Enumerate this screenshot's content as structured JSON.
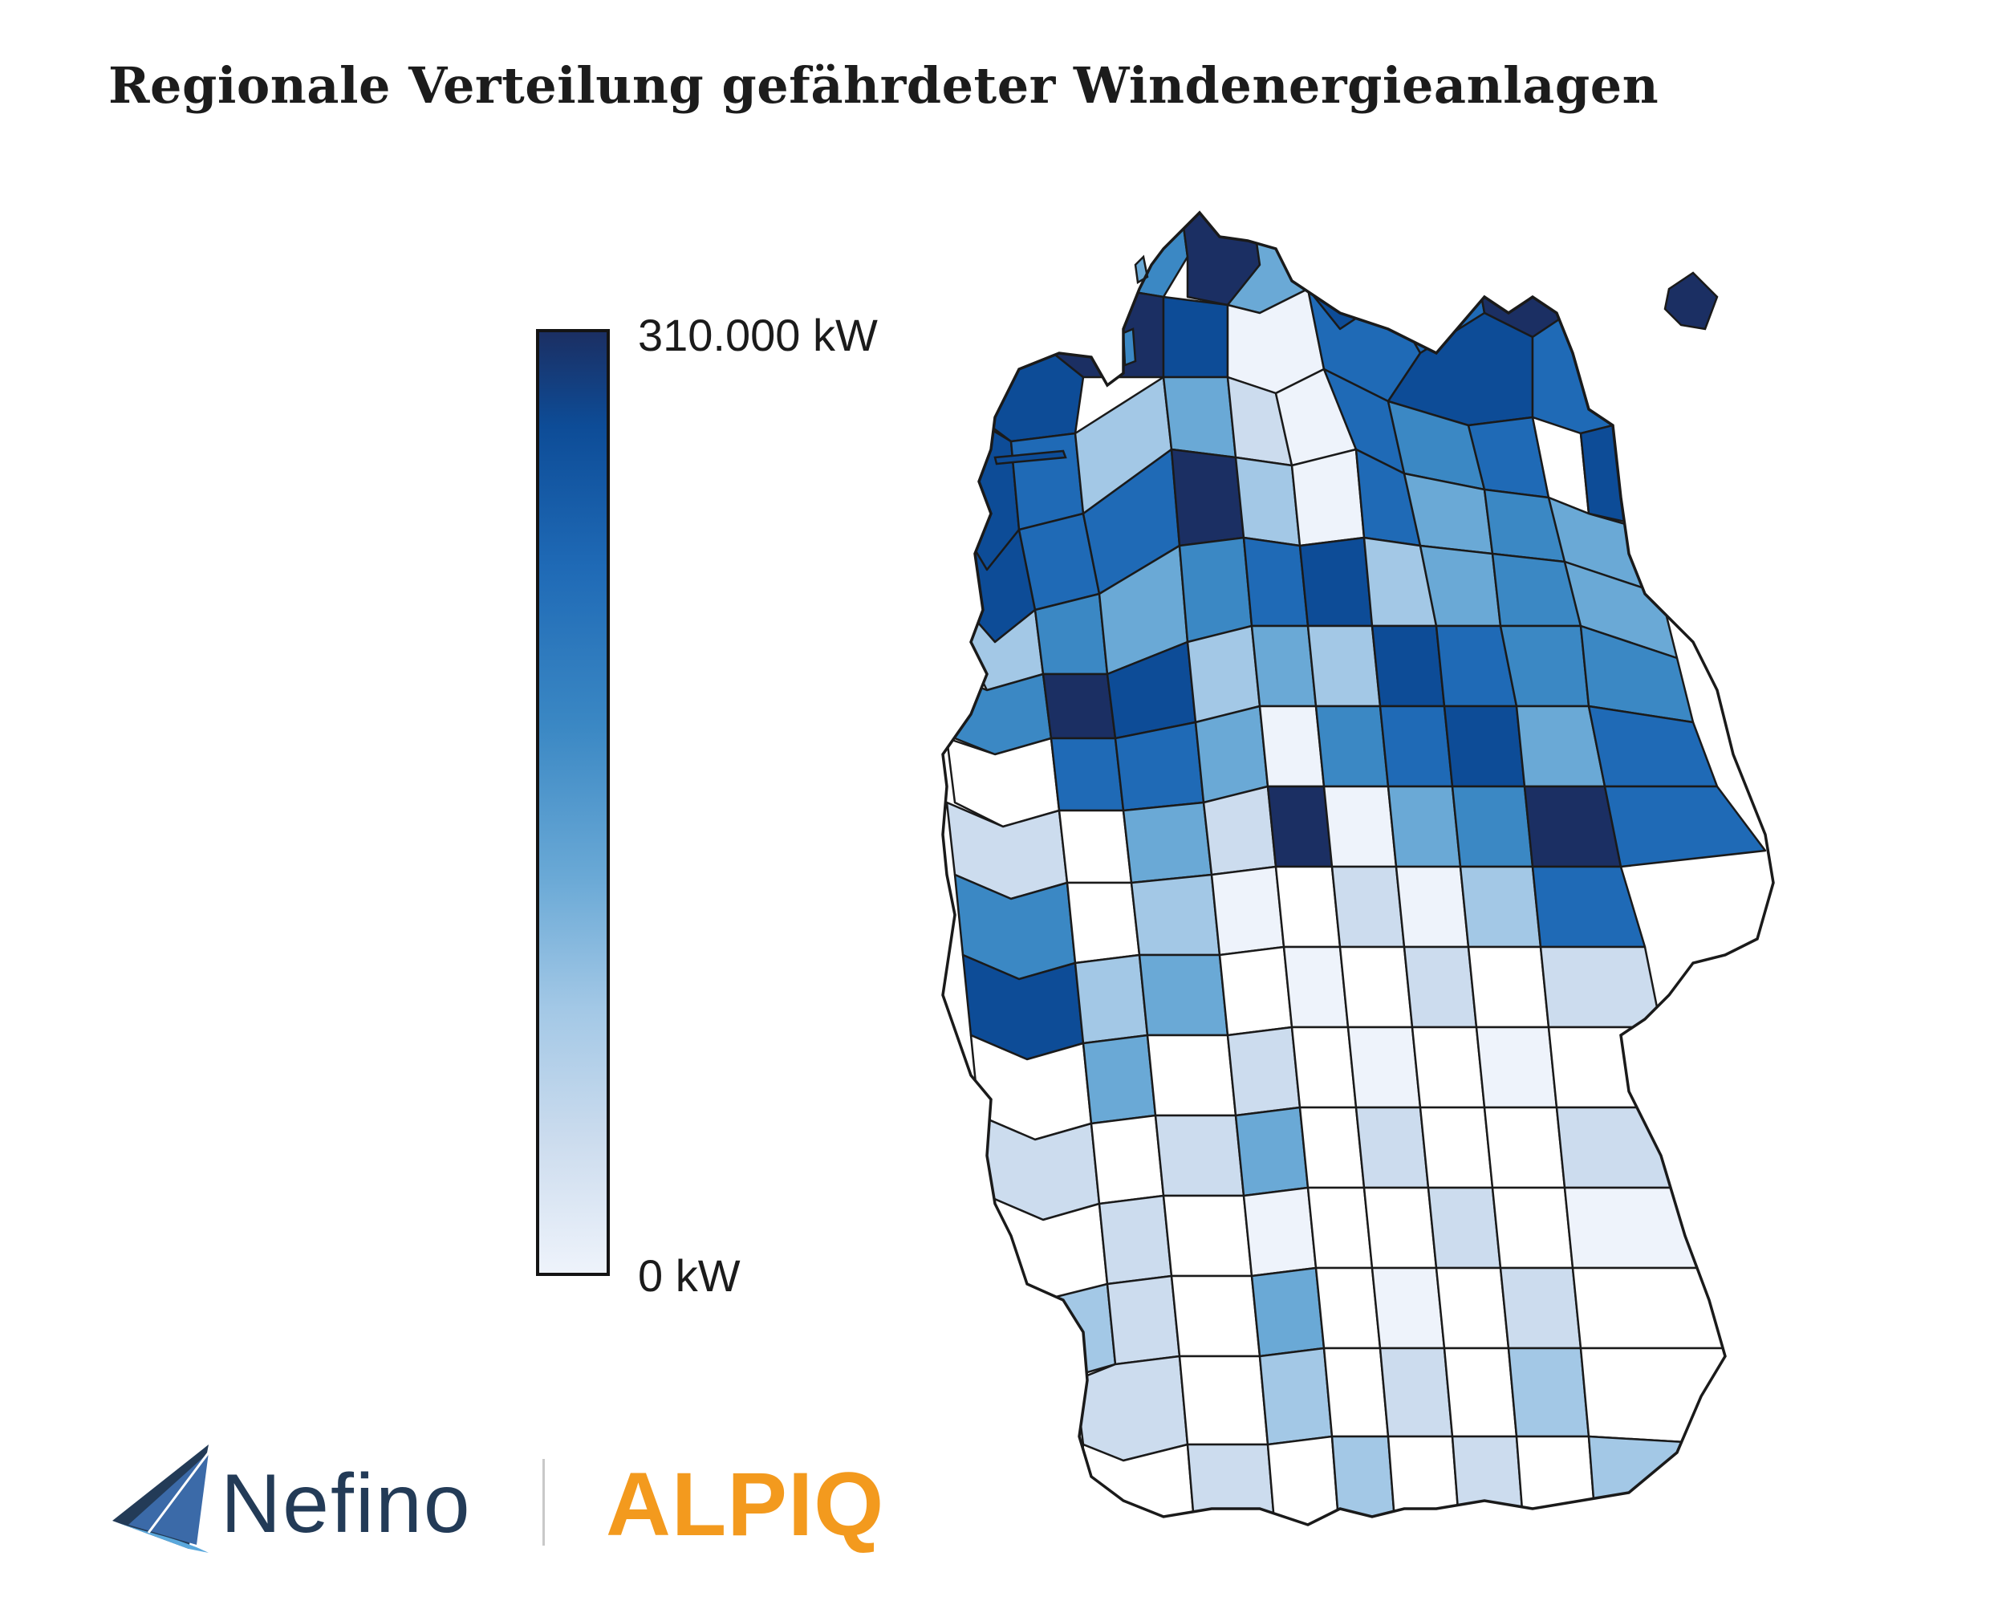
{
  "title": "Regionale Verteilung gefährdeter Windenergieanlagen",
  "legend": {
    "max_label": "310.000 kW",
    "min_label": "0 kW",
    "color_scale": [
      "#eef3fb",
      "#ccdcee",
      "#a3c8e6",
      "#6aa9d6",
      "#3b88c4",
      "#1f6ab6",
      "#0d4c97",
      "#1b2f63"
    ]
  },
  "map": {
    "border_color": "#1a1a1a",
    "levels": [
      "white",
      "very-light",
      "light",
      "mid-light",
      "mid",
      "mid-dark",
      "dark",
      "darkest"
    ]
  },
  "logos": {
    "nefino": {
      "wordmark": "Nefino",
      "color": "#233b57"
    },
    "alpiq": {
      "wordmark": "ALPIQ",
      "color": "#f39a1e"
    }
  }
}
